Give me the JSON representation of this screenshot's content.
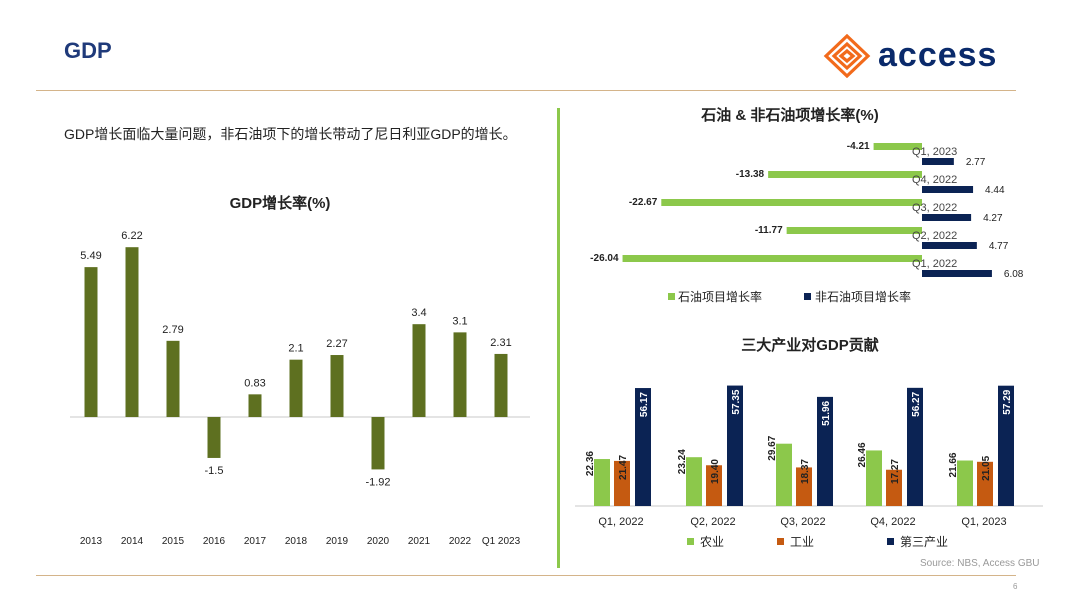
{
  "header": {
    "title": "GDP",
    "logo_text": "access"
  },
  "intro_text": "GDP增长面临大量问题，非石油项下的增长带动了尼日利亚GDP的增长。",
  "colors": {
    "olive": "#5e7020",
    "light_green": "#8cc84b",
    "navy": "#0b2354",
    "orange": "#c55a11",
    "rule": "#d4b48a"
  },
  "chart_data": [
    {
      "id": "gdp",
      "type": "bar",
      "title": "GDP增长率(%)",
      "categories": [
        "2013",
        "2014",
        "2015",
        "2016",
        "2017",
        "2018",
        "2019",
        "2020",
        "2021",
        "2022",
        "Q1 2023"
      ],
      "values": [
        5.49,
        6.22,
        2.79,
        -1.5,
        0.83,
        2.1,
        2.27,
        -1.92,
        3.4,
        3.1,
        2.31
      ],
      "labels": [
        "5.49",
        "6.22",
        "2.79",
        "-1.5",
        "0.83",
        "2.1",
        "2.27",
        "-1.92",
        "3.4",
        "3.1",
        "2.31"
      ]
    },
    {
      "id": "oil",
      "type": "bar",
      "orientation": "horizontal",
      "title": "石油 & 非石油项增长率(%)",
      "categories": [
        "Q1, 2023",
        "Q4, 2022",
        "Q3, 2022",
        "Q2, 2022",
        "Q1, 2022"
      ],
      "series": [
        {
          "name": "石油项目增长率",
          "values": [
            -4.21,
            -13.38,
            -22.67,
            -11.77,
            -26.04
          ],
          "labels": [
            "-4.21",
            "-13.38",
            "-22.67",
            "-11.77",
            "-26.04"
          ]
        },
        {
          "name": "非石油项目增长率",
          "values": [
            2.77,
            4.44,
            4.27,
            4.77,
            6.08
          ],
          "labels": [
            "2.77",
            "4.44",
            "4.27",
            "4.77",
            "6.08"
          ]
        }
      ]
    },
    {
      "id": "sectors",
      "type": "bar",
      "title": "三大产业对GDP贡献",
      "categories": [
        "Q1, 2022",
        "Q2, 2022",
        "Q3, 2022",
        "Q4, 2022",
        "Q1, 2023"
      ],
      "series": [
        {
          "name": "农业",
          "values": [
            22.36,
            23.24,
            29.67,
            26.46,
            21.66
          ],
          "labels": [
            "22.36",
            "23.24",
            "29.67",
            "26.46",
            "21.66"
          ]
        },
        {
          "name": "工业",
          "values": [
            21.47,
            19.4,
            18.37,
            17.27,
            21.05
          ],
          "labels": [
            "21.47",
            "19.40",
            "18.37",
            "17.27",
            "21.05"
          ]
        },
        {
          "name": "第三产业",
          "values": [
            56.17,
            57.35,
            51.96,
            56.27,
            57.29
          ],
          "labels": [
            "56.17",
            "57.35",
            "51.96",
            "56.27",
            "57.29"
          ]
        }
      ]
    }
  ],
  "footer": {
    "source": "Source: NBS, Access GBU",
    "page_number": "6"
  }
}
